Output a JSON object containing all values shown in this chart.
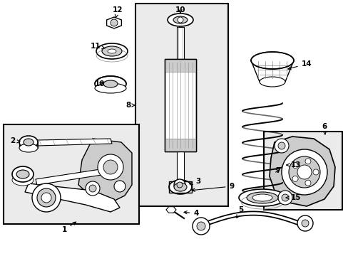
{
  "bg_color": "#ffffff",
  "line_color": "#000000",
  "light_gray": "#ebebeb",
  "mid_gray": "#cccccc",
  "dark_gray": "#888888"
}
